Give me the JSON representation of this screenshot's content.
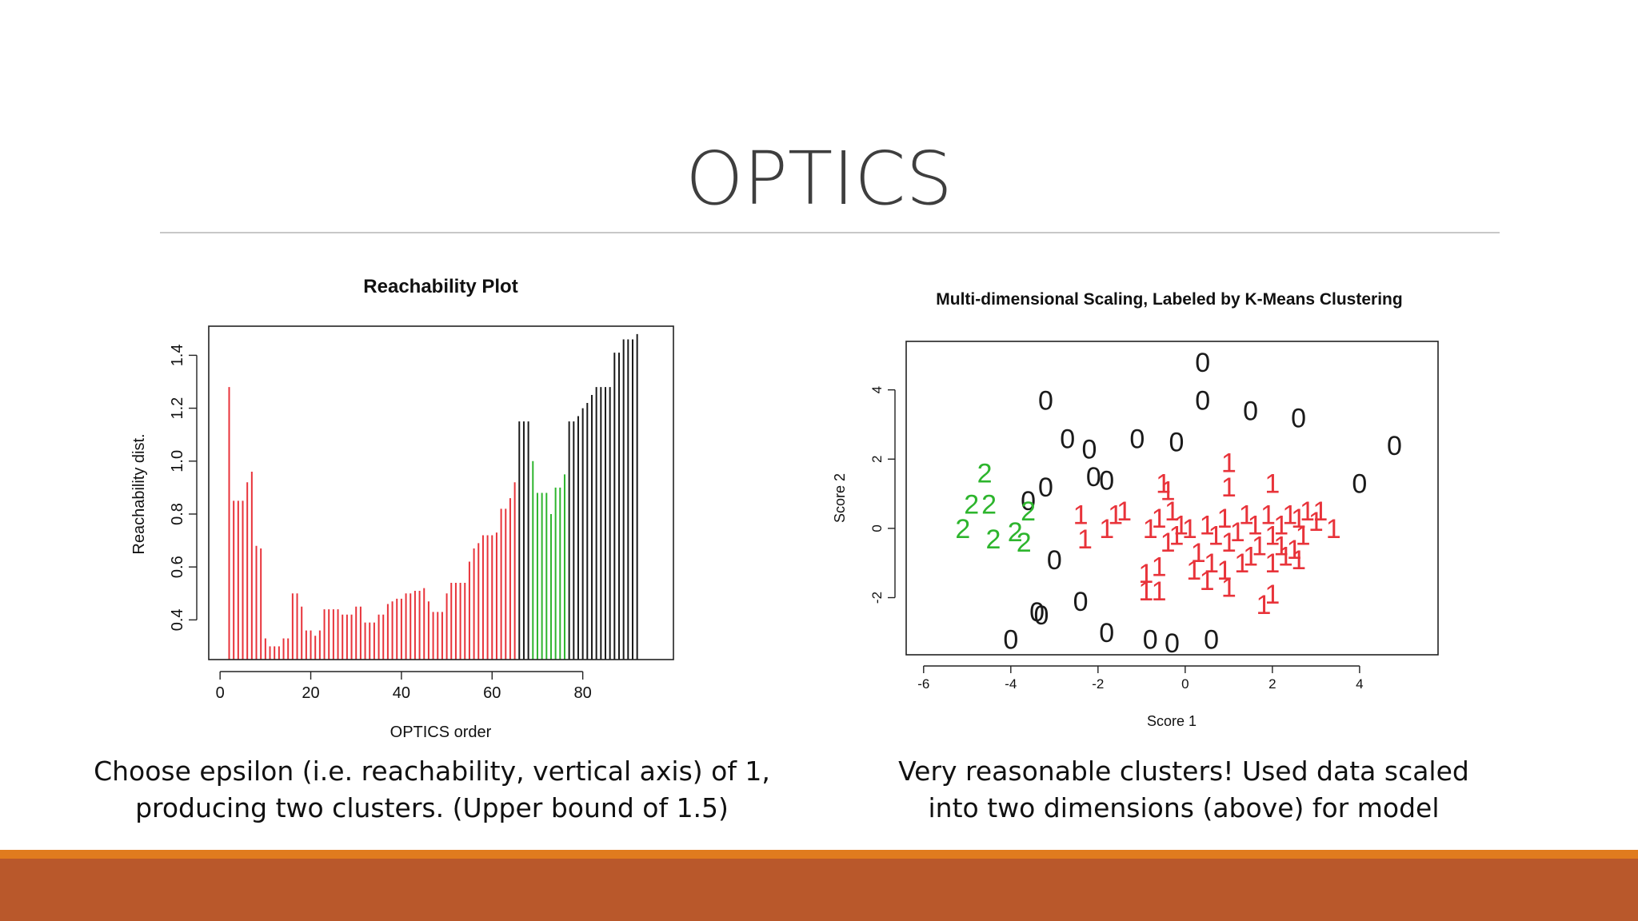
{
  "slide": {
    "title": "OPTICS",
    "caption_left": [
      "Choose epsilon (i.e. reachability, vertical axis) of 1,",
      "producing two clusters. (Upper bound of 1.5)"
    ],
    "caption_right": [
      "Very reasonable clusters! Used data scaled",
      "into two dimensions (above) for model"
    ]
  },
  "colors": {
    "accent_orange": "#e07b1e",
    "footer_rust": "#b9582b",
    "cluster_red": "#e8333a",
    "cluster_green": "#2db52d",
    "noise_black": "#1a1a1a"
  },
  "chart_data": [
    {
      "type": "bar",
      "title": "Reachability Plot",
      "xlabel": "OPTICS order",
      "ylabel": "Reachability dist.",
      "xlim": [
        -2.5,
        100
      ],
      "ylim": [
        0.25,
        1.51
      ],
      "xticks": [
        0,
        20,
        40,
        60,
        80
      ],
      "yticks": [
        0.4,
        0.6,
        0.8,
        1.0,
        1.2,
        1.4
      ],
      "series": [
        {
          "color": "#e8333a",
          "x": [
            2,
            3,
            4,
            5,
            6,
            7,
            8,
            9,
            10,
            11,
            12,
            13,
            14,
            15,
            16,
            17,
            18,
            19,
            20,
            21,
            22,
            23,
            24,
            25,
            26,
            27,
            28,
            29,
            30,
            31,
            32,
            33,
            34,
            35,
            36,
            37,
            38,
            39,
            40,
            41,
            42,
            43,
            44,
            45,
            46,
            47,
            48,
            49,
            50,
            51,
            52,
            53,
            54,
            55,
            56,
            57,
            58,
            59,
            60,
            61,
            62,
            63,
            64,
            65
          ],
          "values": [
            1.28,
            0.85,
            0.85,
            0.85,
            0.92,
            0.96,
            0.68,
            0.67,
            0.33,
            0.3,
            0.3,
            0.3,
            0.33,
            0.33,
            0.5,
            0.5,
            0.45,
            0.36,
            0.36,
            0.34,
            0.36,
            0.44,
            0.44,
            0.44,
            0.44,
            0.42,
            0.42,
            0.42,
            0.45,
            0.45,
            0.39,
            0.39,
            0.39,
            0.42,
            0.42,
            0.46,
            0.47,
            0.48,
            0.48,
            0.5,
            0.5,
            0.51,
            0.51,
            0.52,
            0.47,
            0.43,
            0.43,
            0.43,
            0.5,
            0.54,
            0.54,
            0.54,
            0.54,
            0.62,
            0.67,
            0.69,
            0.72,
            0.72,
            0.72,
            0.73,
            0.82,
            0.82,
            0.86,
            0.92
          ]
        },
        {
          "color": "#1a1a1a",
          "x": [
            66,
            67,
            68
          ],
          "values": [
            1.15,
            1.15,
            1.15
          ]
        },
        {
          "color": "#2db52d",
          "x": [
            69,
            70,
            71,
            72,
            73,
            74,
            75,
            76
          ],
          "values": [
            1.0,
            0.88,
            0.88,
            0.88,
            0.8,
            0.9,
            0.9,
            0.95
          ]
        },
        {
          "color": "#1a1a1a",
          "x": [
            77,
            78,
            79,
            80,
            81,
            82,
            83,
            84,
            85,
            86,
            87,
            88,
            89,
            90,
            91,
            92
          ],
          "values": [
            1.15,
            1.15,
            1.17,
            1.2,
            1.22,
            1.25,
            1.28,
            1.28,
            1.28,
            1.28,
            1.41,
            1.41,
            1.46,
            1.46,
            1.46,
            1.48
          ]
        }
      ]
    },
    {
      "type": "scatter",
      "title": "Multi-dimensional Scaling, Labeled by K-Means Clustering",
      "xlabel": "Score 1",
      "ylabel": "Score 2",
      "xlim": [
        -6.4,
        5.8
      ],
      "ylim": [
        -3.65,
        5.4
      ],
      "xticks": [
        -6,
        -4,
        -2,
        0,
        2,
        4
      ],
      "yticks": [
        -2,
        0,
        2,
        4
      ],
      "series": [
        {
          "label": "0",
          "color": "#1a1a1a",
          "points": [
            [
              0.4,
              4.8
            ],
            [
              -3.2,
              3.7
            ],
            [
              0.4,
              3.7
            ],
            [
              1.5,
              3.4
            ],
            [
              2.6,
              3.2
            ],
            [
              -2.7,
              2.6
            ],
            [
              -2.2,
              2.3
            ],
            [
              -1.1,
              2.6
            ],
            [
              -0.2,
              2.5
            ],
            [
              4.8,
              2.4
            ],
            [
              -2.1,
              1.5
            ],
            [
              -1.8,
              1.4
            ],
            [
              -3.2,
              1.2
            ],
            [
              -3.6,
              0.8
            ],
            [
              4.0,
              1.3
            ],
            [
              -3.0,
              -0.9
            ],
            [
              -2.4,
              -2.1
            ],
            [
              -3.4,
              -2.4
            ],
            [
              -3.3,
              -2.5
            ],
            [
              -1.8,
              -3.0
            ],
            [
              -4.0,
              -3.2
            ],
            [
              -0.8,
              -3.2
            ],
            [
              -0.3,
              -3.3
            ],
            [
              0.6,
              -3.2
            ]
          ]
        },
        {
          "label": "1",
          "color": "#e8333a",
          "points": [
            [
              1.0,
              1.9
            ],
            [
              -0.5,
              1.3
            ],
            [
              -0.4,
              1.1
            ],
            [
              2.0,
              1.3
            ],
            [
              1.0,
              1.2
            ],
            [
              -2.4,
              0.4
            ],
            [
              -1.6,
              0.4
            ],
            [
              -1.4,
              0.5
            ],
            [
              -2.3,
              -0.3
            ],
            [
              -1.8,
              0.0
            ],
            [
              -0.8,
              0.0
            ],
            [
              -0.6,
              0.3
            ],
            [
              -0.3,
              0.5
            ],
            [
              -0.1,
              0.1
            ],
            [
              0.1,
              0.0
            ],
            [
              -0.4,
              -0.4
            ],
            [
              -0.2,
              -0.2
            ],
            [
              0.5,
              0.1
            ],
            [
              0.7,
              -0.2
            ],
            [
              0.9,
              0.3
            ],
            [
              1.0,
              -0.4
            ],
            [
              1.2,
              -0.1
            ],
            [
              1.4,
              0.4
            ],
            [
              1.6,
              0.1
            ],
            [
              1.7,
              -0.5
            ],
            [
              1.9,
              0.4
            ],
            [
              2.0,
              -0.2
            ],
            [
              2.2,
              0.1
            ],
            [
              2.4,
              0.4
            ],
            [
              2.6,
              0.3
            ],
            [
              2.8,
              0.5
            ],
            [
              2.5,
              -0.6
            ],
            [
              2.3,
              -0.8
            ],
            [
              2.7,
              -0.2
            ],
            [
              3.0,
              0.2
            ],
            [
              3.1,
              0.5
            ],
            [
              3.4,
              0.0
            ],
            [
              0.3,
              -0.7
            ],
            [
              0.6,
              -1.0
            ],
            [
              0.9,
              -1.2
            ],
            [
              1.3,
              -1.0
            ],
            [
              1.5,
              -0.8
            ],
            [
              2.0,
              -1.0
            ],
            [
              2.2,
              -0.5
            ],
            [
              2.6,
              -0.9
            ],
            [
              -0.9,
              -1.3
            ],
            [
              -0.6,
              -1.1
            ],
            [
              -0.9,
              -1.8
            ],
            [
              -0.6,
              -1.8
            ],
            [
              0.2,
              -1.2
            ],
            [
              0.5,
              -1.5
            ],
            [
              1.0,
              -1.7
            ],
            [
              1.8,
              -2.2
            ],
            [
              2.0,
              -1.9
            ]
          ]
        },
        {
          "label": "2",
          "color": "#2db52d",
          "points": [
            [
              -4.6,
              1.6
            ],
            [
              -4.9,
              0.7
            ],
            [
              -4.5,
              0.7
            ],
            [
              -3.6,
              0.5
            ],
            [
              -5.1,
              0.0
            ],
            [
              -4.4,
              -0.3
            ],
            [
              -3.9,
              -0.1
            ],
            [
              -3.7,
              -0.4
            ]
          ]
        }
      ]
    }
  ]
}
